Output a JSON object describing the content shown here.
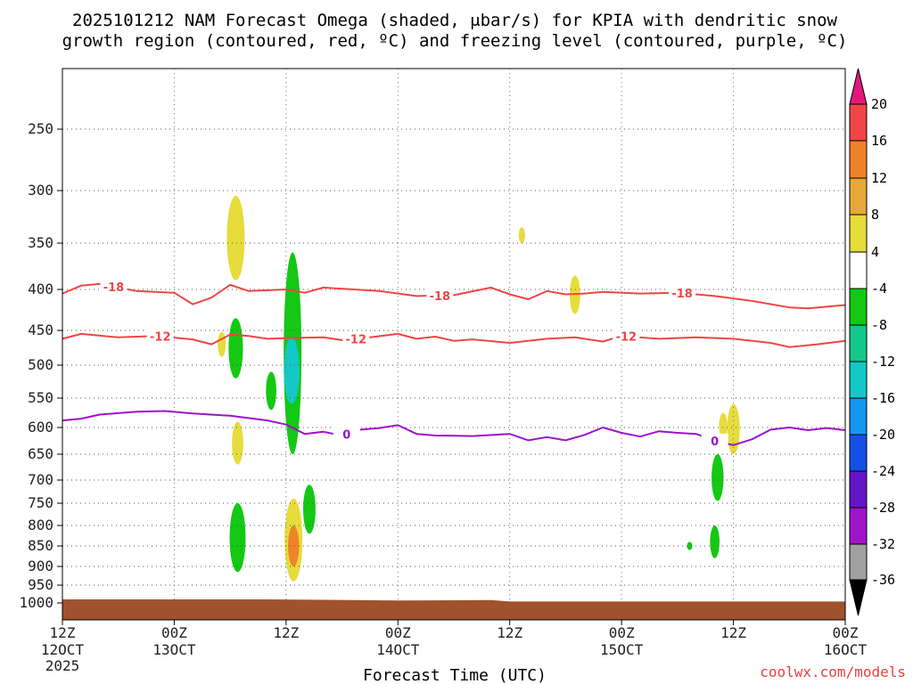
{
  "chart_data": {
    "type": "heatmap",
    "title_line1": "2025101212 NAM Forecast Omega (shaded, μbar/s) for KPIA with dendritic snow",
    "title_line2": "growth region (contoured, red, ºC) and freezing level (contoured, purple, ºC)",
    "xlabel": "Forecast Time (UTC)",
    "credit": "coolwx.com/models",
    "y_axis": {
      "scale": "pressure",
      "ticks": [
        250,
        300,
        350,
        400,
        450,
        500,
        550,
        600,
        650,
        700,
        750,
        800,
        850,
        900,
        950,
        1000
      ],
      "ylim": [
        1000,
        200
      ]
    },
    "x_axis": {
      "xlim_hours": [
        0,
        84
      ],
      "ticks": [
        {
          "hour": 0,
          "l1": "12Z",
          "l2": "12OCT",
          "l3": "2025"
        },
        {
          "hour": 12,
          "l1": "00Z",
          "l2": "13OCT",
          "l3": ""
        },
        {
          "hour": 24,
          "l1": "12Z",
          "l2": "",
          "l3": ""
        },
        {
          "hour": 36,
          "l1": "00Z",
          "l2": "14OCT",
          "l3": ""
        },
        {
          "hour": 48,
          "l1": "12Z",
          "l2": "",
          "l3": ""
        },
        {
          "hour": 60,
          "l1": "00Z",
          "l2": "15OCT",
          "l3": ""
        },
        {
          "hour": 72,
          "l1": "12Z",
          "l2": "",
          "l3": ""
        },
        {
          "hour": 84,
          "l1": "00Z",
          "l2": "16OCT",
          "l3": ""
        }
      ]
    },
    "colorbar": {
      "labels": [
        "20",
        "16",
        "12",
        "8",
        "4",
        "-4",
        "-8",
        "-12",
        "-16",
        "-20",
        "-24",
        "-28",
        "-32",
        "-36"
      ],
      "colors": [
        "#e3187c",
        "#f04545",
        "#f0822a",
        "#e6a838",
        "#e6dc3c",
        "#ffffff",
        "#14c814",
        "#14c88c",
        "#14c8c8",
        "#1496f0",
        "#1450e6",
        "#6414c8",
        "#a014c8",
        "#a0a0a0",
        "#000000"
      ]
    },
    "contours": [
      {
        "label": "-18",
        "color": "#f04545",
        "label_hours": [
          5.5,
          40.5,
          66.5
        ],
        "points": [
          [
            0,
            405
          ],
          [
            2,
            396
          ],
          [
            4,
            394
          ],
          [
            8,
            402
          ],
          [
            12,
            404
          ],
          [
            14,
            418
          ],
          [
            16,
            410
          ],
          [
            18,
            395
          ],
          [
            20,
            402
          ],
          [
            24,
            400
          ],
          [
            26,
            404
          ],
          [
            28,
            398
          ],
          [
            34,
            402
          ],
          [
            38,
            408
          ],
          [
            42,
            407
          ],
          [
            46,
            398
          ],
          [
            48,
            406
          ],
          [
            50,
            412
          ],
          [
            52,
            402
          ],
          [
            54,
            406
          ],
          [
            56,
            405
          ],
          [
            58,
            403
          ],
          [
            62,
            405
          ],
          [
            66,
            404
          ],
          [
            70,
            408
          ],
          [
            74,
            414
          ],
          [
            78,
            422
          ],
          [
            80,
            423
          ],
          [
            84,
            419
          ]
        ]
      },
      {
        "label": "-12",
        "color": "#f04545",
        "label_hours": [
          10.5,
          31.5,
          60.5
        ],
        "points": [
          [
            0,
            462
          ],
          [
            2,
            455
          ],
          [
            6,
            460
          ],
          [
            10,
            458
          ],
          [
            14,
            463
          ],
          [
            16,
            470
          ],
          [
            18,
            456
          ],
          [
            20,
            458
          ],
          [
            22,
            462
          ],
          [
            24,
            461
          ],
          [
            28,
            460
          ],
          [
            30,
            464
          ],
          [
            33,
            460
          ],
          [
            36,
            455
          ],
          [
            38,
            462
          ],
          [
            40,
            459
          ],
          [
            42,
            465
          ],
          [
            44,
            463
          ],
          [
            48,
            468
          ],
          [
            52,
            462
          ],
          [
            55,
            460
          ],
          [
            58,
            466
          ],
          [
            60,
            458
          ],
          [
            64,
            462
          ],
          [
            68,
            460
          ],
          [
            72,
            462
          ],
          [
            76,
            468
          ],
          [
            78,
            474
          ],
          [
            81,
            470
          ],
          [
            84,
            465
          ]
        ]
      },
      {
        "label": "0",
        "color": "#9c14c8",
        "label_hours": [
          30.5,
          70.0
        ],
        "points": [
          [
            0,
            588
          ],
          [
            2,
            585
          ],
          [
            4,
            578
          ],
          [
            8,
            573
          ],
          [
            11,
            572
          ],
          [
            14,
            576
          ],
          [
            18,
            580
          ],
          [
            22,
            588
          ],
          [
            24,
            595
          ],
          [
            26,
            612
          ],
          [
            28,
            608
          ],
          [
            30,
            615
          ],
          [
            32,
            604
          ],
          [
            34,
            601
          ],
          [
            36,
            596
          ],
          [
            38,
            612
          ],
          [
            40,
            615
          ],
          [
            44,
            616
          ],
          [
            48,
            612
          ],
          [
            50,
            624
          ],
          [
            52,
            618
          ],
          [
            54,
            624
          ],
          [
            56,
            614
          ],
          [
            58,
            600
          ],
          [
            60,
            610
          ],
          [
            62,
            617
          ],
          [
            64,
            607
          ],
          [
            66,
            610
          ],
          [
            68,
            612
          ],
          [
            70,
            625
          ],
          [
            72,
            633
          ],
          [
            74,
            622
          ],
          [
            76,
            604
          ],
          [
            78,
            600
          ],
          [
            80,
            605
          ],
          [
            82,
            601
          ],
          [
            84,
            605
          ]
        ]
      }
    ],
    "blobs": [
      {
        "hour": 18.6,
        "p_top": 305,
        "p_bottom": 390,
        "color": "#e6dc3c"
      },
      {
        "hour": 18.6,
        "p_top": 435,
        "p_bottom": 520,
        "color": "#14c814"
      },
      {
        "hour": 17.1,
        "p_top": 452,
        "p_bottom": 488,
        "color": "#e6dc3c"
      },
      {
        "hour": 18.8,
        "p_top": 590,
        "p_bottom": 670,
        "color": "#e6dc3c"
      },
      {
        "hour": 18.8,
        "p_top": 750,
        "p_bottom": 915,
        "color": "#14c814"
      },
      {
        "hour": 22.4,
        "p_top": 510,
        "p_bottom": 570,
        "color": "#14c814"
      },
      {
        "hour": 24.7,
        "p_top": 360,
        "p_bottom": 650,
        "color": "#14c814"
      },
      {
        "hour": 24.6,
        "p_top": 460,
        "p_bottom": 560,
        "color": "#14c8c8"
      },
      {
        "hour": 24.8,
        "p_top": 740,
        "p_bottom": 940,
        "color": "#e6dc3c"
      },
      {
        "hour": 24.8,
        "p_top": 800,
        "p_bottom": 900,
        "color": "#f0822a"
      },
      {
        "hour": 26.5,
        "p_top": 710,
        "p_bottom": 820,
        "color": "#14c814"
      },
      {
        "hour": 49.3,
        "p_top": 335,
        "p_bottom": 350,
        "color": "#e6dc3c"
      },
      {
        "hour": 55.0,
        "p_top": 385,
        "p_bottom": 430,
        "color": "#e6dc3c"
      },
      {
        "hour": 70.3,
        "p_top": 650,
        "p_bottom": 745,
        "color": "#14c814"
      },
      {
        "hour": 70.0,
        "p_top": 800,
        "p_bottom": 880,
        "color": "#14c814"
      },
      {
        "hour": 67.3,
        "p_top": 840,
        "p_bottom": 860,
        "color": "#14c814"
      },
      {
        "hour": 72.0,
        "p_top": 560,
        "p_bottom": 650,
        "color": "#e6dc3c"
      },
      {
        "hour": 70.9,
        "p_top": 575,
        "p_bottom": 620,
        "color": "#e6dc3c"
      }
    ],
    "terrain": {
      "color": "#a0522d",
      "p_top": [
        [
          0,
          990
        ],
        [
          22,
          990
        ],
        [
          36,
          993
        ],
        [
          46,
          992
        ],
        [
          48,
          996
        ],
        [
          84,
          996
        ]
      ]
    },
    "grid": true
  }
}
